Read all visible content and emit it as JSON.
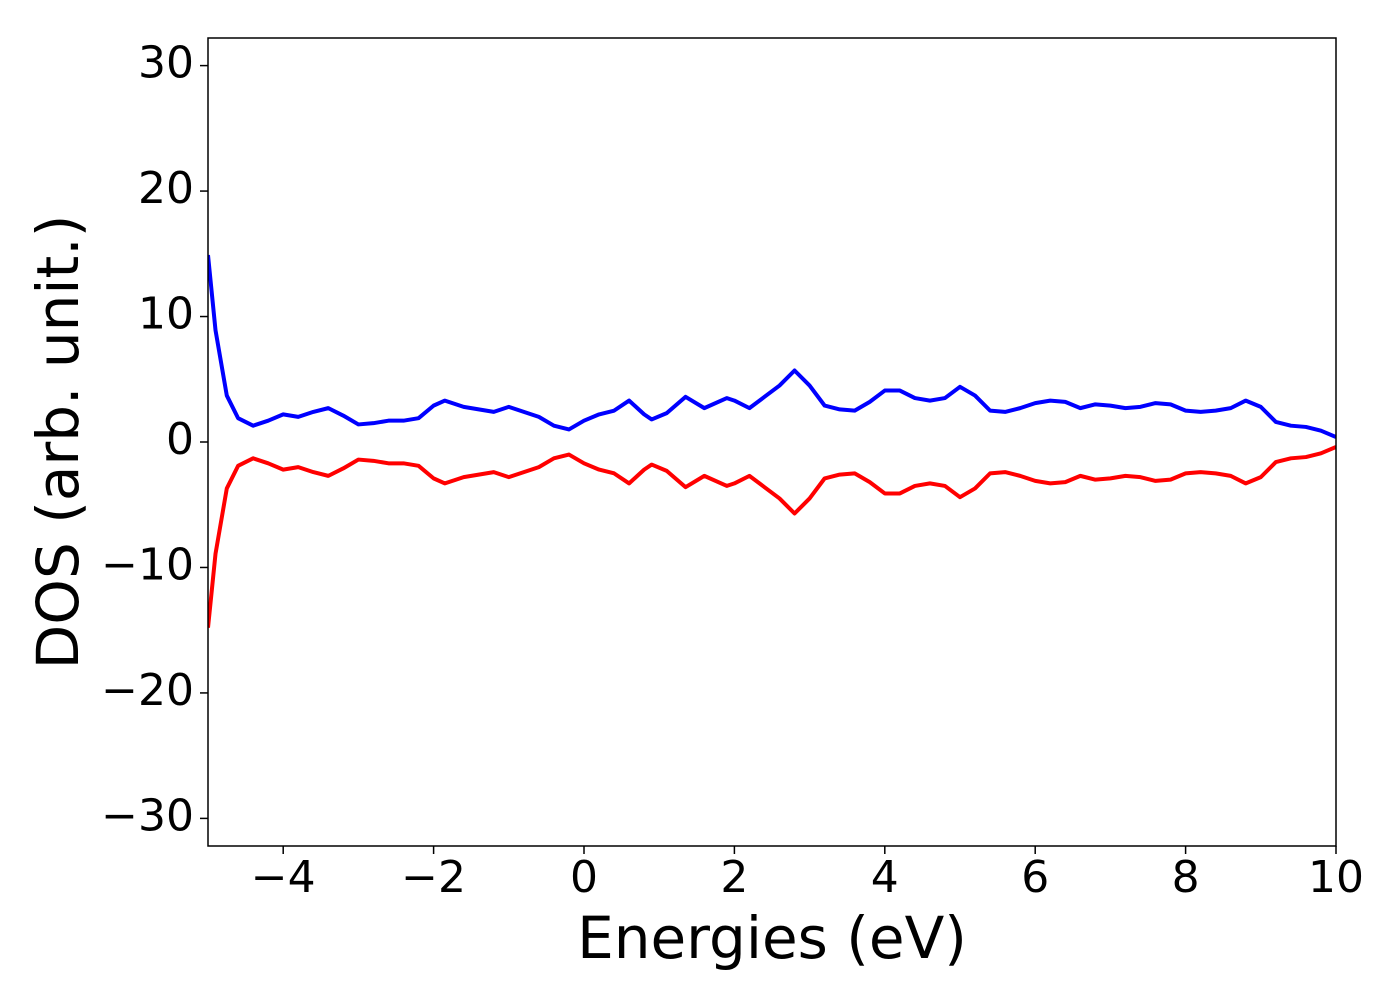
{
  "chart_data": {
    "type": "line",
    "xlabel": "Energies (eV)",
    "ylabel": "DOS (arb. unit.)",
    "x": [
      -5,
      -4.9,
      -4.75,
      -4.6,
      -4.4,
      -4.2,
      -4.0,
      -3.8,
      -3.6,
      -3.4,
      -3.2,
      -3.0,
      -2.8,
      -2.6,
      -2.4,
      -2.2,
      -2.0,
      -1.85,
      -1.6,
      -1.4,
      -1.2,
      -1.0,
      -0.8,
      -0.6,
      -0.4,
      -0.2,
      0.0,
      0.2,
      0.4,
      0.6,
      0.8,
      0.9,
      1.1,
      1.35,
      1.6,
      1.9,
      2.0,
      2.2,
      2.4,
      2.6,
      2.8,
      3.0,
      3.2,
      3.4,
      3.6,
      3.8,
      4.0,
      4.2,
      4.4,
      4.6,
      4.8,
      5.0,
      5.2,
      5.4,
      5.6,
      5.8,
      6.0,
      6.2,
      6.4,
      6.6,
      6.8,
      7.0,
      7.2,
      7.4,
      7.6,
      7.8,
      8.0,
      8.2,
      8.4,
      8.6,
      8.8,
      9.0,
      9.2,
      9.4,
      9.6,
      9.8,
      10.0
    ],
    "series": [
      {
        "color": "#0000ff",
        "values": [
          14.9,
          8.9,
          3.7,
          1.9,
          1.3,
          1.7,
          2.2,
          2.0,
          2.4,
          2.7,
          2.1,
          1.4,
          1.5,
          1.7,
          1.7,
          1.9,
          2.9,
          3.3,
          2.8,
          2.6,
          2.4,
          2.8,
          2.4,
          2.0,
          1.3,
          1.0,
          1.7,
          2.2,
          2.5,
          3.3,
          2.2,
          1.8,
          2.3,
          3.6,
          2.7,
          3.5,
          3.3,
          2.7,
          3.6,
          4.5,
          5.7,
          4.5,
          2.9,
          2.6,
          2.5,
          3.2,
          4.1,
          4.1,
          3.5,
          3.3,
          3.5,
          4.4,
          3.7,
          2.5,
          2.4,
          2.7,
          3.1,
          3.3,
          3.2,
          2.7,
          3.0,
          2.9,
          2.7,
          2.8,
          3.1,
          3.0,
          2.5,
          2.4,
          2.5,
          2.7,
          3.3,
          2.8,
          1.6,
          1.3,
          1.2,
          0.9,
          0.4
        ]
      },
      {
        "color": "#ff0000",
        "values": [
          -14.8,
          -8.9,
          -3.7,
          -1.9,
          -1.3,
          -1.7,
          -2.2,
          -2.0,
          -2.4,
          -2.7,
          -2.1,
          -1.4,
          -1.5,
          -1.7,
          -1.7,
          -1.9,
          -2.9,
          -3.3,
          -2.8,
          -2.6,
          -2.4,
          -2.8,
          -2.4,
          -2.0,
          -1.3,
          -1.0,
          -1.7,
          -2.2,
          -2.5,
          -3.3,
          -2.2,
          -1.8,
          -2.3,
          -3.6,
          -2.7,
          -3.5,
          -3.3,
          -2.7,
          -3.6,
          -4.5,
          -5.7,
          -4.5,
          -2.9,
          -2.6,
          -2.5,
          -3.2,
          -4.1,
          -4.1,
          -3.5,
          -3.3,
          -3.5,
          -4.4,
          -3.7,
          -2.5,
          -2.4,
          -2.7,
          -3.1,
          -3.3,
          -3.2,
          -2.7,
          -3.0,
          -2.9,
          -2.7,
          -2.8,
          -3.1,
          -3.0,
          -2.5,
          -2.4,
          -2.5,
          -2.7,
          -3.3,
          -2.8,
          -1.6,
          -1.3,
          -1.2,
          -0.9,
          -0.4
        ]
      }
    ],
    "xlim": [
      -5,
      10
    ],
    "xticks": [
      {
        "value": -4,
        "label": "−4"
      },
      {
        "value": -2,
        "label": "−2"
      },
      0,
      2,
      4,
      6,
      8,
      10
    ],
    "ylim": [
      -32.2,
      32.2
    ],
    "yticks": [
      {
        "value": -30,
        "label": "−30"
      },
      {
        "value": -20,
        "label": "−20"
      },
      {
        "value": -10,
        "label": "−10"
      },
      0,
      10,
      20,
      30
    ],
    "grid": false
  }
}
